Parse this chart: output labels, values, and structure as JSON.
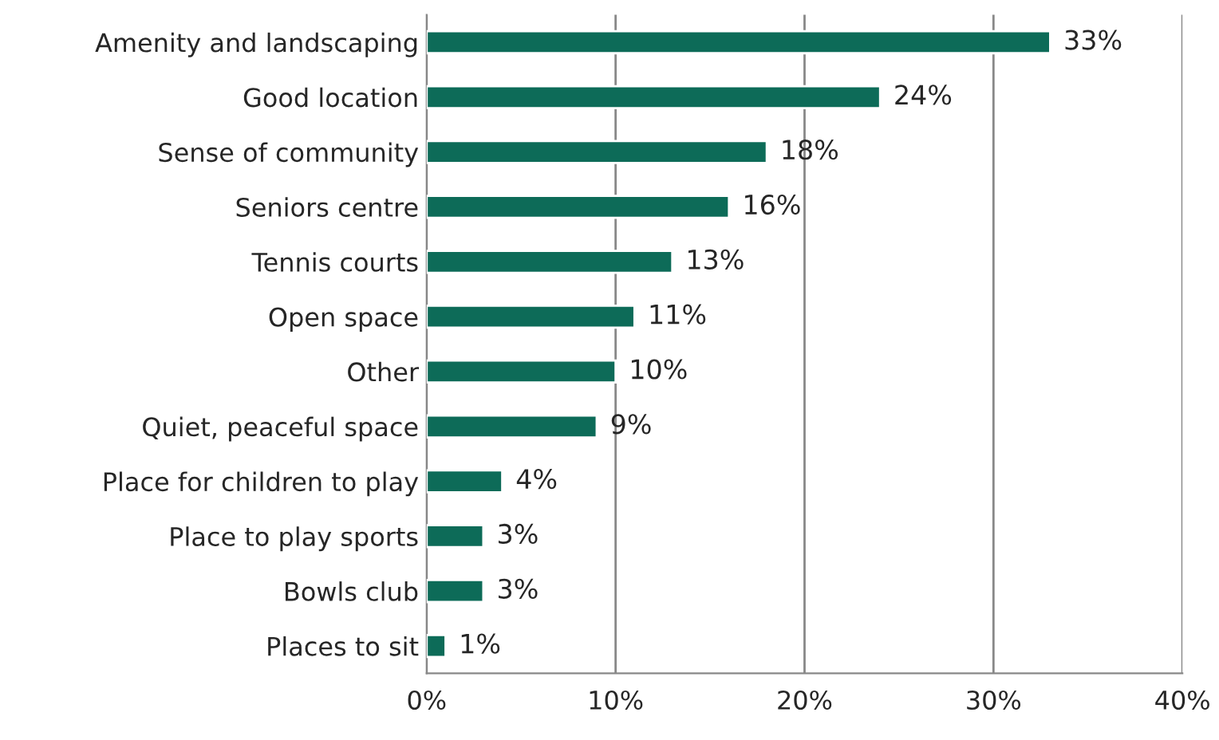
{
  "chart_data": {
    "type": "bar",
    "orientation": "horizontal",
    "categories": [
      "Amenity and landscaping",
      "Good location",
      "Sense of community",
      "Seniors centre",
      "Tennis courts",
      "Open space",
      "Other",
      "Quiet, peaceful space",
      "Place for children to play",
      "Place to play sports",
      "Bowls club",
      "Places to sit"
    ],
    "values": [
      33,
      24,
      18,
      16,
      13,
      11,
      10,
      9,
      4,
      3,
      3,
      1
    ],
    "value_labels": [
      "33%",
      "24%",
      "18%",
      "16%",
      "13%",
      "11%",
      "10%",
      "9%",
      "4%",
      "3%",
      "3%",
      "1%"
    ],
    "color": "#0d6b58",
    "xlim": [
      0,
      40
    ],
    "xticks": [
      {
        "value": 0,
        "label": "0%"
      },
      {
        "value": 10,
        "label": "10%"
      },
      {
        "value": 20,
        "label": "20%"
      },
      {
        "value": 30,
        "label": "30%"
      },
      {
        "value": 40,
        "label": "40%"
      }
    ],
    "grid": "x",
    "legend": false
  }
}
